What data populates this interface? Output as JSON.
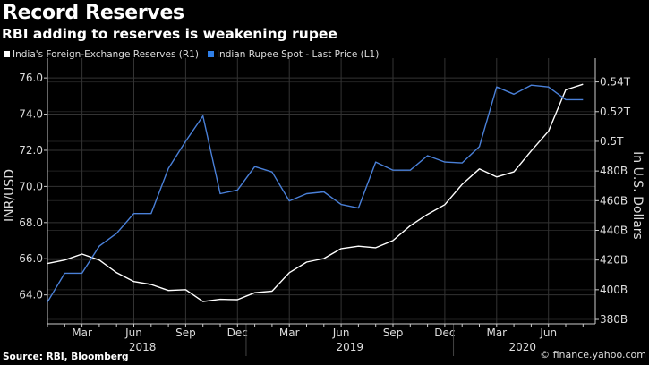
{
  "chart_data": {
    "type": "line",
    "title": "Record Reserves",
    "subtitle": "RBI adding to reserves is weakening rupee",
    "x": [
      "2018-01",
      "2018-02",
      "2018-03",
      "2018-04",
      "2018-05",
      "2018-06",
      "2018-07",
      "2018-08",
      "2018-09",
      "2018-10",
      "2018-11",
      "2018-12",
      "2019-01",
      "2019-02",
      "2019-03",
      "2019-04",
      "2019-05",
      "2019-06",
      "2019-07",
      "2019-08",
      "2019-09",
      "2019-10",
      "2019-11",
      "2019-12",
      "2020-01",
      "2020-02",
      "2020-03",
      "2020-04",
      "2020-05",
      "2020-06",
      "2020-07",
      "2020-08"
    ],
    "x_tick_labels": [
      {
        "month": "2018-03",
        "label": "Mar"
      },
      {
        "month": "2018-06",
        "label": "Jun"
      },
      {
        "month": "2018-09",
        "label": "Sep"
      },
      {
        "month": "2018-12",
        "label": "Dec"
      },
      {
        "month": "2019-03",
        "label": "Mar"
      },
      {
        "month": "2019-06",
        "label": "Jun"
      },
      {
        "month": "2019-09",
        "label": "Sep"
      },
      {
        "month": "2019-12",
        "label": "Dec"
      },
      {
        "month": "2020-03",
        "label": "Mar"
      },
      {
        "month": "2020-06",
        "label": "Jun"
      }
    ],
    "year_labels": [
      "2018",
      "2019",
      "2020"
    ],
    "series": [
      {
        "name": "India's Foreign-Exchange Reserves (R1)",
        "axis": "right",
        "color": "#ffffff",
        "unit": "B USD",
        "values": [
          417.6,
          420,
          424,
          420,
          411.5,
          405.5,
          403.5,
          399.5,
          400,
          392,
          393.5,
          393.3,
          398,
          399,
          411.5,
          418.6,
          421,
          427.7,
          429.3,
          428.3,
          433.1,
          443.1,
          450.8,
          457.3,
          471,
          481.4,
          476,
          479.4,
          493.5,
          506.8,
          534.7,
          538.4
        ]
      },
      {
        "name": "Indian Rupee Spot - Last Price (L1)",
        "axis": "left",
        "color": "#4a80d8",
        "unit": "INR/USD",
        "values": [
          63.6,
          65.2,
          65.2,
          66.7,
          67.4,
          68.5,
          68.5,
          71.0,
          72.5,
          73.9,
          69.6,
          69.8,
          71.1,
          70.8,
          69.2,
          69.6,
          69.7,
          69.0,
          68.8,
          71.35,
          70.9,
          70.9,
          71.7,
          71.35,
          71.3,
          72.2,
          75.5,
          75.1,
          75.6,
          75.5,
          74.8,
          74.8
        ]
      }
    ],
    "left_axis": {
      "label": "INR/USD",
      "range": [
        62.4,
        76.6
      ],
      "ticks": [
        "64.0",
        "66.0",
        "68.0",
        "70.0",
        "72.0",
        "74.0",
        "76.0"
      ],
      "tick_values": [
        64,
        66,
        68,
        70,
        72,
        74,
        76
      ]
    },
    "right_axis": {
      "label": "In U.S. Dollars",
      "range": [
        377,
        550
      ],
      "ticks": [
        "380B",
        "400B",
        "420B",
        "440B",
        "460B",
        "480B",
        "0.5T",
        "0.52T",
        "0.54T"
      ],
      "tick_values": [
        380,
        400,
        420,
        440,
        460,
        480,
        500,
        520,
        540
      ]
    },
    "grid": true,
    "legend_placement": "top-left"
  },
  "source": "Source: RBI, Bloomberg",
  "credit": "© finance.yahoo.com"
}
